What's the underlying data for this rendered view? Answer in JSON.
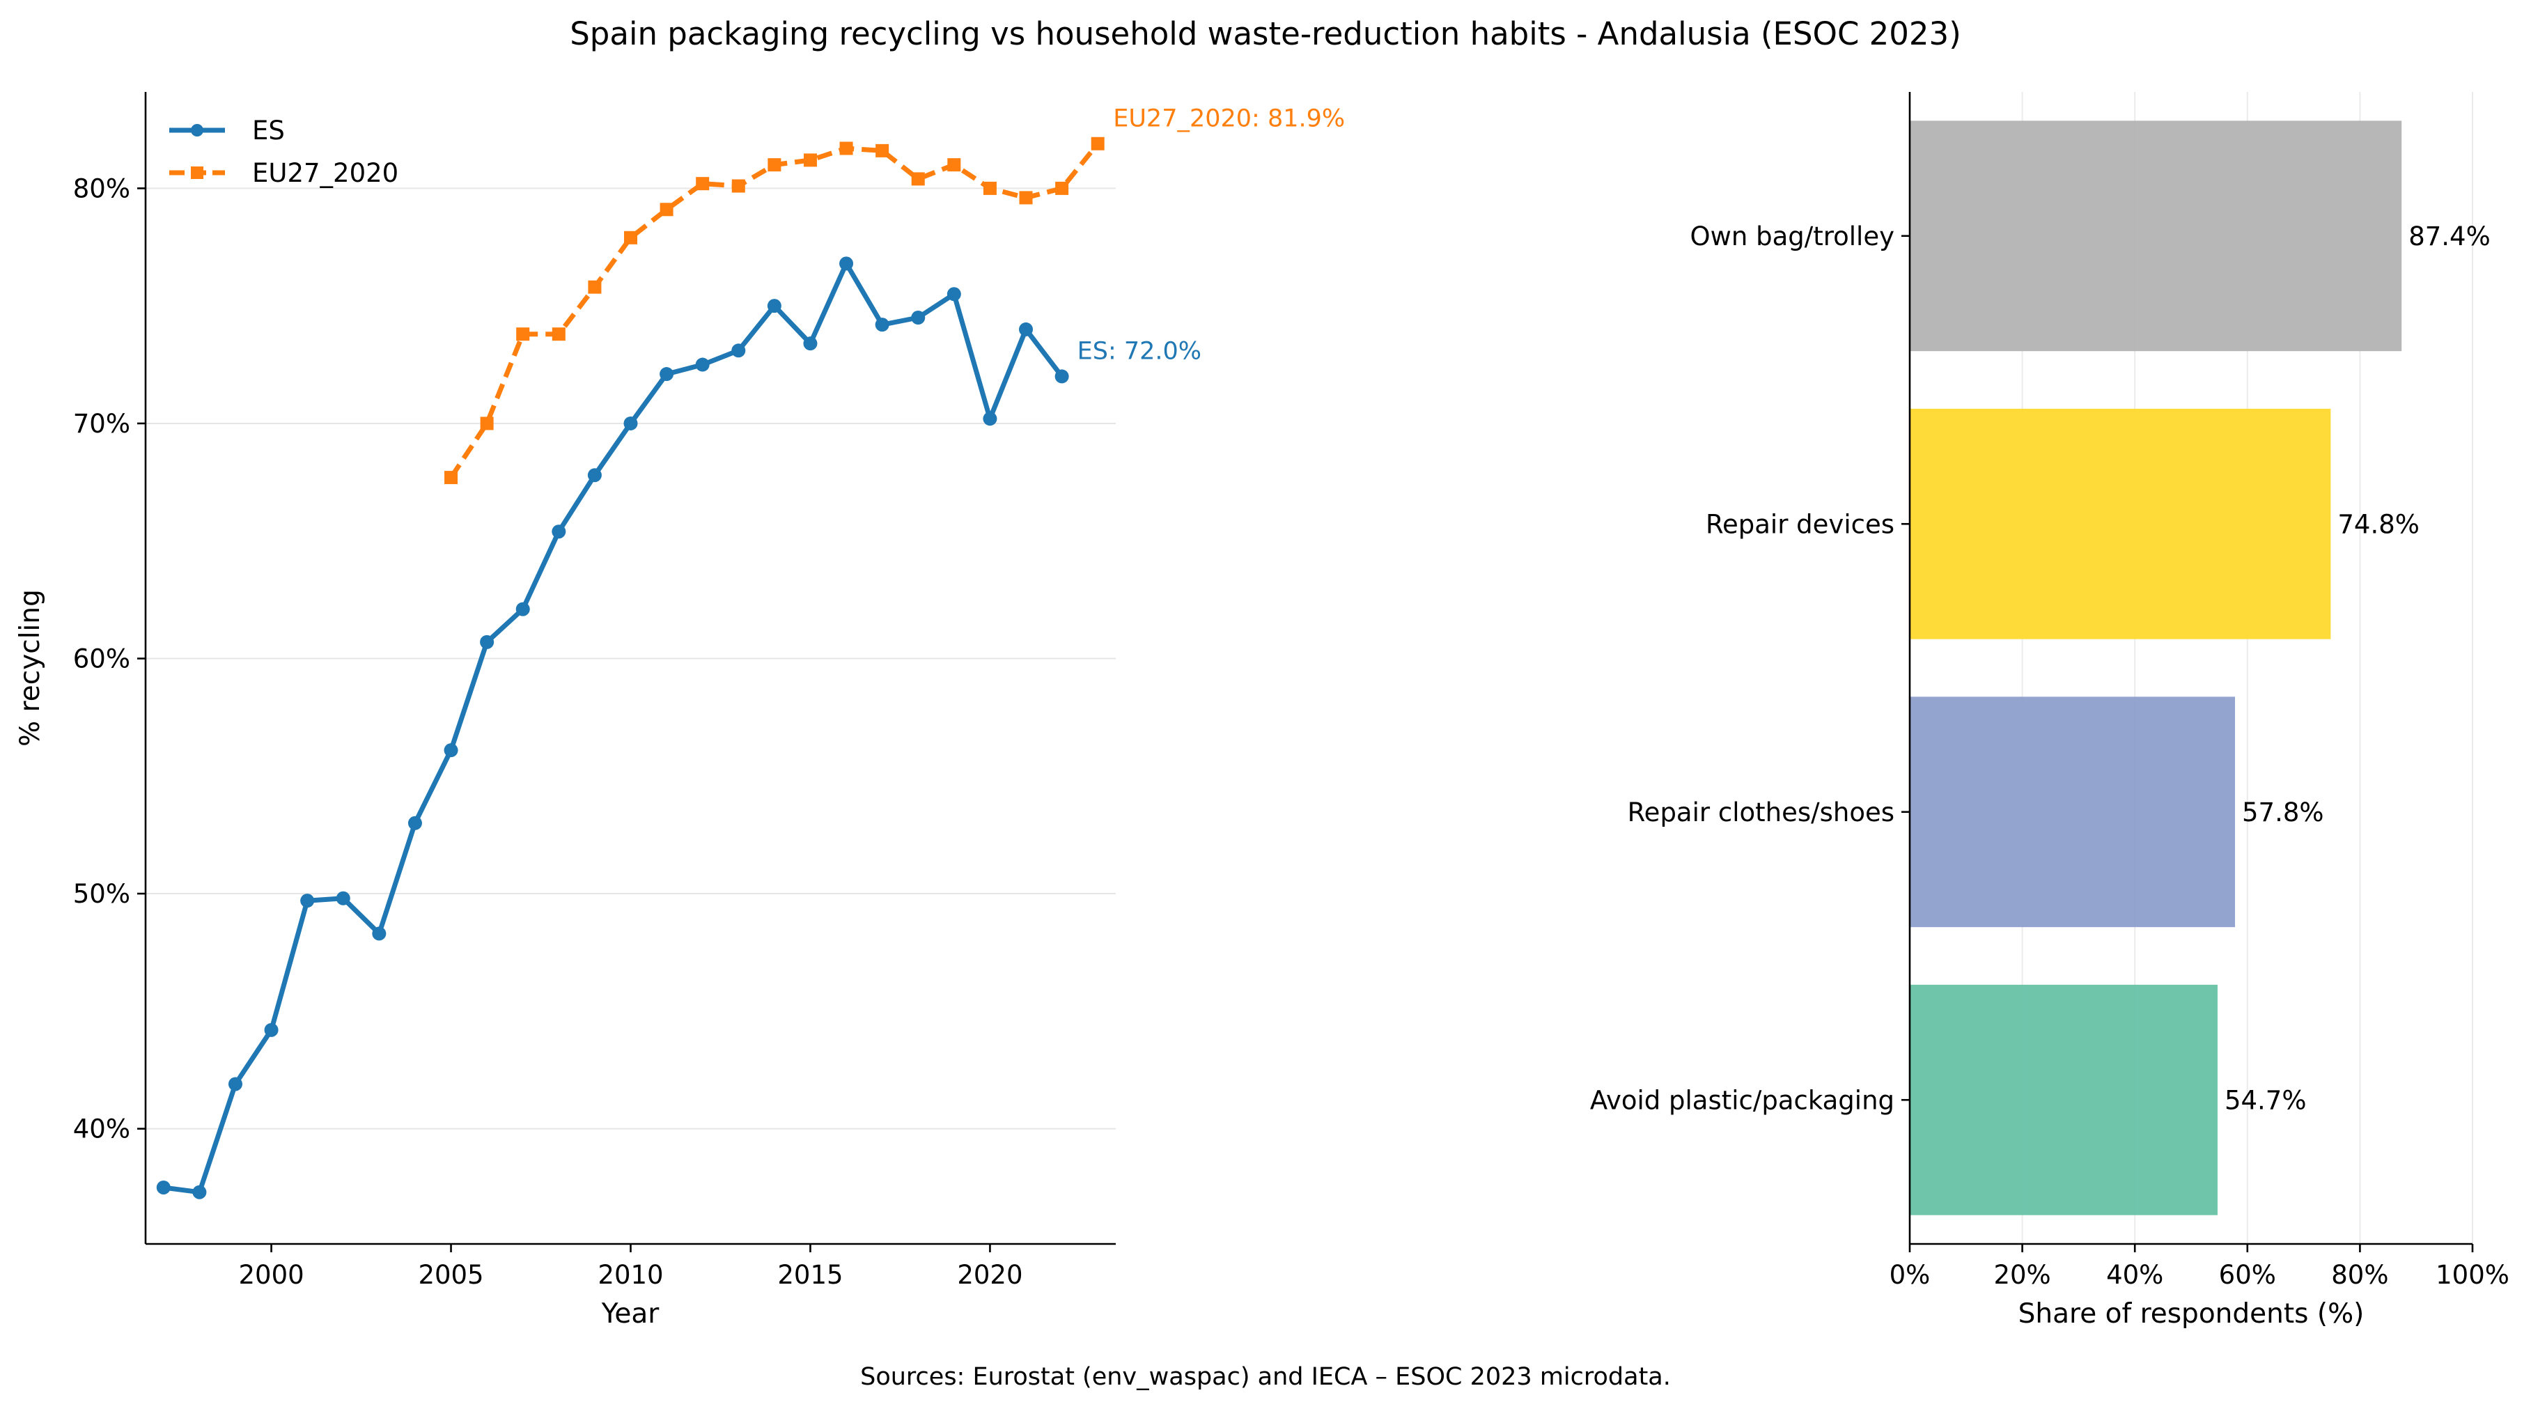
{
  "figure": {
    "title": "Spain packaging recycling vs household waste-reduction habits - Andalusia (ESOC 2023)",
    "footnote": "Sources: Eurostat (env_waspac) and IECA – ESOC 2023 microdata."
  },
  "colors": {
    "es": "#1f77b4",
    "eu": "#ff7f0e",
    "bars": [
      "#b3b3b3",
      "#ffd92f",
      "#8da0cb",
      "#66c2a5"
    ]
  },
  "chart_data": [
    {
      "type": "line",
      "xlabel": "Year",
      "ylabel": "% recycling",
      "xlim": [
        1996.5,
        2023.5
      ],
      "ylim": [
        35.1,
        84.1
      ],
      "x_ticks": [
        2000,
        2005,
        2010,
        2015,
        2020
      ],
      "x_tick_labels": [
        "2000",
        "2005",
        "2010",
        "2015",
        "2020"
      ],
      "y_ticks": [
        40,
        50,
        60,
        70,
        80
      ],
      "y_tick_labels": [
        "40%",
        "50%",
        "60%",
        "70%",
        "80%"
      ],
      "grid": "horizontal",
      "legend": "top-left",
      "series": [
        {
          "name": "ES",
          "marker": "circle",
          "line": "solid",
          "x": [
            1997,
            1998,
            1999,
            2000,
            2001,
            2002,
            2003,
            2004,
            2005,
            2006,
            2007,
            2008,
            2009,
            2010,
            2011,
            2012,
            2013,
            2014,
            2015,
            2016,
            2017,
            2018,
            2019,
            2020,
            2021,
            2022
          ],
          "values": [
            37.5,
            37.3,
            41.9,
            44.2,
            49.7,
            49.8,
            48.3,
            53.0,
            56.1,
            60.7,
            62.1,
            65.4,
            67.8,
            70.0,
            72.1,
            72.5,
            73.1,
            75.0,
            73.4,
            76.8,
            74.2,
            74.5,
            75.5,
            70.2,
            74.0,
            72.0
          ],
          "end_label": "ES: 72.0%"
        },
        {
          "name": "EU27_2020",
          "marker": "square",
          "line": "dashed",
          "x": [
            2005,
            2006,
            2007,
            2008,
            2009,
            2010,
            2011,
            2012,
            2013,
            2014,
            2015,
            2016,
            2017,
            2018,
            2019,
            2020,
            2021,
            2022,
            2023
          ],
          "values": [
            67.7,
            70.0,
            73.8,
            73.8,
            75.8,
            77.9,
            79.1,
            80.2,
            80.1,
            81.0,
            81.2,
            81.7,
            81.6,
            80.4,
            81.0,
            80.0,
            79.6,
            80.0,
            81.9
          ],
          "end_label": "EU27_2020: 81.9%"
        }
      ]
    },
    {
      "type": "bar",
      "orientation": "horizontal",
      "xlabel": "Share of respondents (%)",
      "xlim": [
        0,
        100
      ],
      "x_ticks": [
        0,
        20,
        40,
        60,
        80,
        100
      ],
      "x_tick_labels": [
        "0%",
        "20%",
        "40%",
        "60%",
        "80%",
        "100%"
      ],
      "grid": "vertical",
      "categories": [
        "Own bag/trolley",
        "Repair devices",
        "Repair clothes/shoes",
        "Avoid plastic/packaging"
      ],
      "values": [
        87.4,
        74.8,
        57.8,
        54.7
      ],
      "value_labels": [
        "87.4%",
        "74.8%",
        "57.8%",
        "54.7%"
      ]
    }
  ]
}
